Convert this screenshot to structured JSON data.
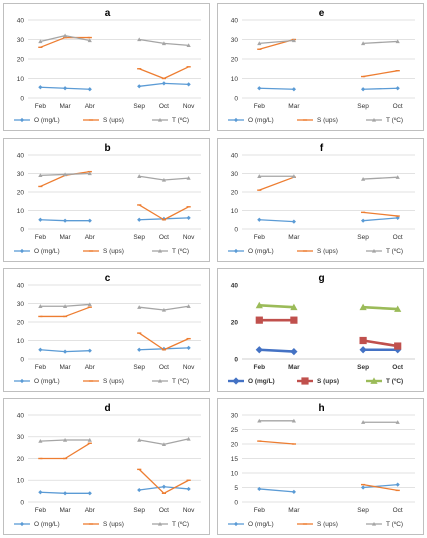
{
  "colors": {
    "O": "#5B9BD5",
    "S": "#ED7D31",
    "T": "#A5A5A5",
    "O_g": "#4472C4",
    "S_g": "#C0504D",
    "T_g": "#9BBB59"
  },
  "chart_data": [
    {
      "type": "line",
      "title": "a",
      "ylim": [
        0,
        40
      ],
      "yticks": [
        0,
        10,
        20,
        30,
        40
      ],
      "grid": true,
      "legend": "bottom",
      "categories": [
        "Feb",
        "Mar",
        "Abr",
        "",
        "Sep",
        "Oct",
        "Nov"
      ],
      "series": [
        {
          "name": "O (mg/L)",
          "values": [
            5.5,
            5,
            4.5,
            null,
            6,
            7.5,
            7
          ],
          "color_key": "O",
          "marker": "diamond"
        },
        {
          "name": "S (ups)",
          "values": [
            26,
            31,
            31,
            null,
            15,
            10,
            16
          ],
          "color_key": "S",
          "marker": "line"
        },
        {
          "name": "T (ºC)",
          "values": [
            29,
            32,
            29.5,
            null,
            30,
            28,
            27
          ],
          "color_key": "T",
          "marker": "triangle"
        }
      ]
    },
    {
      "type": "line",
      "title": "e",
      "ylim": [
        0,
        40
      ],
      "yticks": [
        0,
        10,
        20,
        30,
        40
      ],
      "grid": true,
      "legend": "bottom",
      "categories": [
        "Feb",
        "Mar",
        "",
        "Sep",
        "Oct"
      ],
      "series": [
        {
          "name": "O (mg/L)",
          "values": [
            5,
            4.5,
            null,
            4.5,
            5
          ],
          "color_key": "O",
          "marker": "diamond"
        },
        {
          "name": "S (ups)",
          "values": [
            25,
            30,
            null,
            11,
            14
          ],
          "color_key": "S",
          "marker": "line"
        },
        {
          "name": "T (ºC)",
          "values": [
            28,
            29.5,
            null,
            28,
            29
          ],
          "color_key": "T",
          "marker": "triangle"
        }
      ]
    },
    {
      "type": "line",
      "title": "b",
      "ylim": [
        0,
        40
      ],
      "yticks": [
        0,
        10,
        20,
        30,
        40
      ],
      "grid": true,
      "legend": "bottom",
      "categories": [
        "Feb",
        "Mar",
        "Abr",
        "",
        "Sep",
        "Oct",
        "Nov"
      ],
      "series": [
        {
          "name": "O (mg/L)",
          "values": [
            5,
            4.5,
            4.5,
            null,
            5,
            5.5,
            6
          ],
          "color_key": "O",
          "marker": "diamond"
        },
        {
          "name": "S (ups)",
          "values": [
            23,
            29,
            31,
            null,
            13,
            5,
            12
          ],
          "color_key": "S",
          "marker": "line"
        },
        {
          "name": "T (ºC)",
          "values": [
            29,
            29.5,
            30,
            null,
            28.5,
            26.5,
            27.5
          ],
          "color_key": "T",
          "marker": "triangle"
        }
      ]
    },
    {
      "type": "line",
      "title": "f",
      "ylim": [
        0,
        40
      ],
      "yticks": [
        0,
        10,
        20,
        30,
        40
      ],
      "grid": true,
      "legend": "bottom",
      "categories": [
        "Feb",
        "Mar",
        "",
        "Sep",
        "Oct"
      ],
      "series": [
        {
          "name": "O (mg/L)",
          "values": [
            5,
            4,
            null,
            4.5,
            6
          ],
          "color_key": "O",
          "marker": "diamond"
        },
        {
          "name": "S (ups)",
          "values": [
            21,
            28,
            null,
            9,
            7
          ],
          "color_key": "S",
          "marker": "line"
        },
        {
          "name": "T (ºC)",
          "values": [
            28.5,
            28.5,
            null,
            27,
            28
          ],
          "color_key": "T",
          "marker": "triangle"
        }
      ]
    },
    {
      "type": "line",
      "title": "c",
      "ylim": [
        0,
        40
      ],
      "yticks": [
        0,
        10,
        20,
        30,
        40
      ],
      "grid": true,
      "legend": "bottom",
      "categories": [
        "Feb",
        "Mar",
        "Abr",
        "",
        "Sep",
        "Oct",
        "Nov"
      ],
      "series": [
        {
          "name": "O (mg/L)",
          "values": [
            5,
            4,
            4.5,
            null,
            5,
            5.5,
            6
          ],
          "color_key": "O",
          "marker": "diamond"
        },
        {
          "name": "S (ups)",
          "values": [
            23,
            23,
            28,
            null,
            14,
            5,
            11
          ],
          "color_key": "S",
          "marker": "line"
        },
        {
          "name": "T (ºC)",
          "values": [
            28.5,
            28.5,
            29.5,
            null,
            28,
            26.5,
            28.5
          ],
          "color_key": "T",
          "marker": "triangle"
        }
      ]
    },
    {
      "type": "line",
      "title": "g",
      "ylim": [
        0,
        40
      ],
      "yticks": [
        0,
        20,
        40
      ],
      "grid": false,
      "legend": "bottom",
      "categories": [
        "Feb",
        "Mar",
        "",
        "Sep",
        "Oct"
      ],
      "series": [
        {
          "name": "O (mg/L)",
          "values": [
            5,
            4,
            null,
            5,
            5
          ],
          "color_key": "O_g",
          "marker": "diamond"
        },
        {
          "name": "S (ups)",
          "values": [
            21,
            21,
            null,
            10,
            7
          ],
          "color_key": "S_g",
          "marker": "square"
        },
        {
          "name": "T (ºC)",
          "values": [
            29,
            28,
            null,
            28,
            27
          ],
          "color_key": "T_g",
          "marker": "triangle"
        }
      ]
    },
    {
      "type": "line",
      "title": "d",
      "ylim": [
        0,
        40
      ],
      "yticks": [
        0,
        10,
        20,
        30,
        40
      ],
      "grid": true,
      "legend": "bottom",
      "categories": [
        "Feb",
        "Mar",
        "Abr",
        "",
        "Sep",
        "Oct",
        "Nov"
      ],
      "series": [
        {
          "name": "O (mg/L)",
          "values": [
            4.5,
            4,
            4,
            null,
            5.5,
            7,
            6
          ],
          "color_key": "O",
          "marker": "diamond"
        },
        {
          "name": "S (ups)",
          "values": [
            20,
            20,
            27,
            null,
            15,
            4,
            10
          ],
          "color_key": "S",
          "marker": "line"
        },
        {
          "name": "T (ºC)",
          "values": [
            28,
            28.5,
            28.5,
            null,
            28.5,
            26.5,
            29
          ],
          "color_key": "T",
          "marker": "triangle"
        }
      ]
    },
    {
      "type": "line",
      "title": "h",
      "ylim": [
        0,
        30
      ],
      "yticks": [
        0,
        5,
        10,
        15,
        20,
        25,
        30
      ],
      "grid": true,
      "legend": "bottom",
      "categories": [
        "Feb",
        "Mar",
        "",
        "Sep",
        "Oct"
      ],
      "series": [
        {
          "name": "O (mg/L)",
          "values": [
            4.5,
            3.5,
            null,
            5,
            6
          ],
          "color_key": "O",
          "marker": "diamond"
        },
        {
          "name": "S (ups)",
          "values": [
            21,
            20,
            null,
            6,
            4
          ],
          "color_key": "S",
          "marker": "line"
        },
        {
          "name": "T (ºC)",
          "values": [
            28,
            28,
            null,
            27.5,
            27.5
          ],
          "color_key": "T",
          "marker": "triangle"
        }
      ]
    }
  ]
}
